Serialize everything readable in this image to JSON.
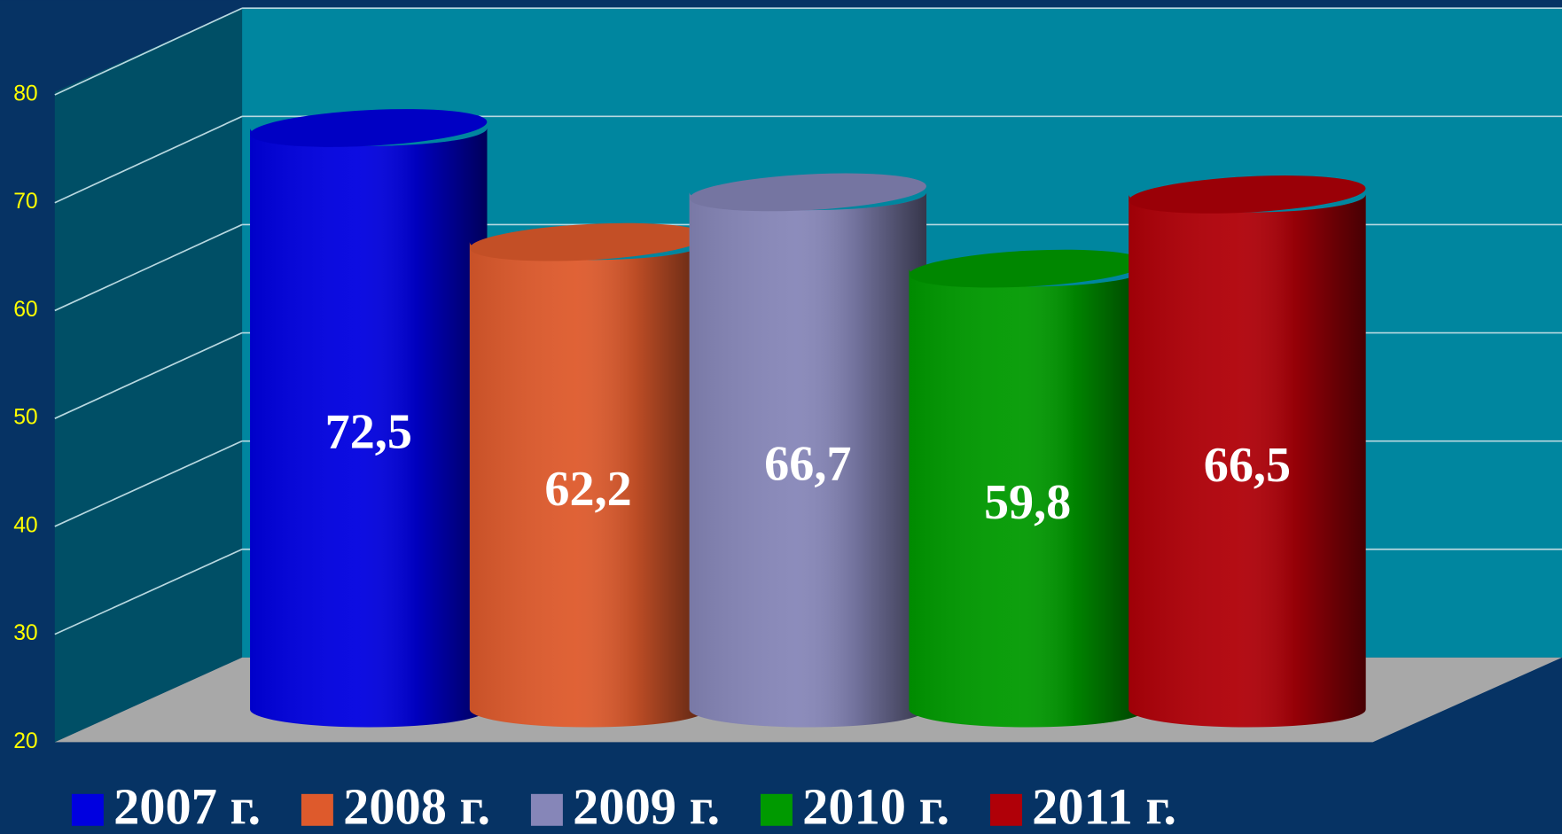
{
  "chart_data": {
    "type": "bar",
    "series": [
      {
        "name": "2007 г.",
        "color": "#0000e0",
        "values": [
          72.5
        ],
        "value_labels": [
          "72,5"
        ]
      },
      {
        "name": "2008 г.",
        "color": "#de5a2c",
        "values": [
          62.2
        ],
        "value_labels": [
          "62,2"
        ]
      },
      {
        "name": "2009 г.",
        "color": "#8686b8",
        "values": [
          66.7
        ],
        "value_labels": [
          "66,7"
        ]
      },
      {
        "name": "2010 г.",
        "color": "#009a00",
        "values": [
          59.8
        ],
        "value_labels": [
          "59,8"
        ]
      },
      {
        "name": "2011 г.",
        "color": "#b00008",
        "values": [
          66.5
        ],
        "value_labels": [
          "66,5"
        ]
      }
    ],
    "ylim": [
      20,
      80
    ],
    "yticks": [
      20,
      30,
      40,
      50,
      60,
      70,
      80
    ],
    "grid": true
  }
}
